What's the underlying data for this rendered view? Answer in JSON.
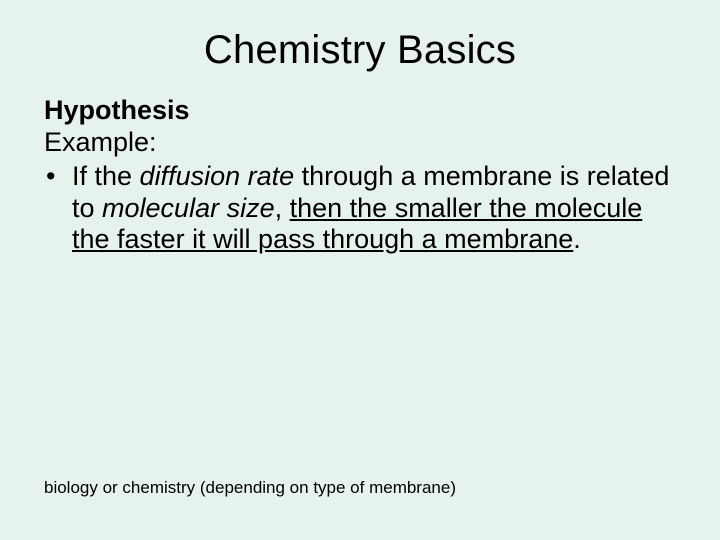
{
  "background_color": "#e6f2ec",
  "text_color": "#000000",
  "font_family": "Arial, Helvetica, sans-serif",
  "title": {
    "text": "Chemistry Basics",
    "fontsize": 40,
    "weight": 400,
    "align": "center"
  },
  "body": {
    "fontsize": 27,
    "hypothesis_label": "Hypothesis",
    "example_label": "Example:",
    "bullet": {
      "marker": "•",
      "seg_if_the": "If the ",
      "seg_diffusion_rate": "diffusion rate",
      "seg_through_membrane": " through a membrane is related to ",
      "seg_molecular_size": "molecular size",
      "seg_comma_space": ", ",
      "seg_then_clause": "then the smaller the molecule the faster it will pass through a membrane",
      "seg_period": "."
    }
  },
  "footer": {
    "text": "biology or chemistry (depending on type of membrane)",
    "fontsize": 17
  }
}
